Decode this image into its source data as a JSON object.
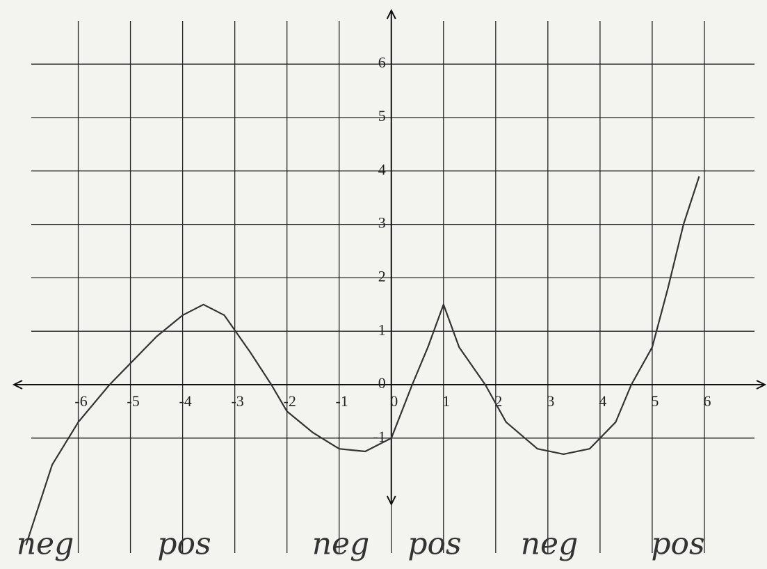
{
  "chart_data": {
    "type": "line",
    "x": [
      -7,
      -6.5,
      -6,
      -5.4,
      -5,
      -4.5,
      -4,
      -3.6,
      -3.2,
      -2.7,
      -2.3,
      -2,
      -1.5,
      -1,
      -0.5,
      0,
      0.4,
      0.7,
      1,
      1.3,
      1.8,
      2.2,
      2.8,
      3.3,
      3.8,
      4.3,
      4.6,
      5,
      5.3,
      5.6,
      5.9
    ],
    "values": [
      -3,
      -1.5,
      -0.7,
      0,
      0.4,
      0.9,
      1.3,
      1.5,
      1.3,
      0.6,
      0,
      -0.5,
      -0.9,
      -1.2,
      -1.25,
      -1,
      0,
      0.7,
      1.5,
      0.7,
      0,
      -0.7,
      -1.2,
      -1.3,
      -1.2,
      -0.7,
      0,
      0.7,
      1.8,
      3,
      3.9
    ],
    "color": "#333333",
    "xlim": [
      -7.5,
      7.2
    ],
    "ylim": [
      -3.45,
      7.2
    ],
    "xticks": [
      -6,
      -5,
      -4,
      -3,
      -2,
      -1,
      0,
      1,
      2,
      3,
      4,
      5,
      6
    ],
    "yticks": [
      -1,
      0,
      1,
      2,
      3,
      4,
      5,
      6
    ],
    "grid": true,
    "annotations": [
      "neg",
      "pos",
      "neg",
      "pos",
      "neg",
      "pos"
    ]
  }
}
